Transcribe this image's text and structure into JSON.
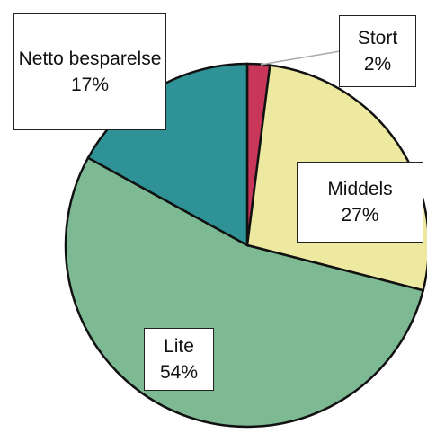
{
  "chart_data": {
    "type": "pie",
    "categories": [
      "Stort",
      "Middels",
      "Lite",
      "Netto besparelse"
    ],
    "values": [
      2,
      27,
      54,
      17
    ],
    "value_labels": [
      "2%",
      "27%",
      "54%",
      "17%"
    ],
    "colors": [
      "#c8375a",
      "#ede9a0",
      "#7dba94",
      "#2e9297"
    ]
  }
}
